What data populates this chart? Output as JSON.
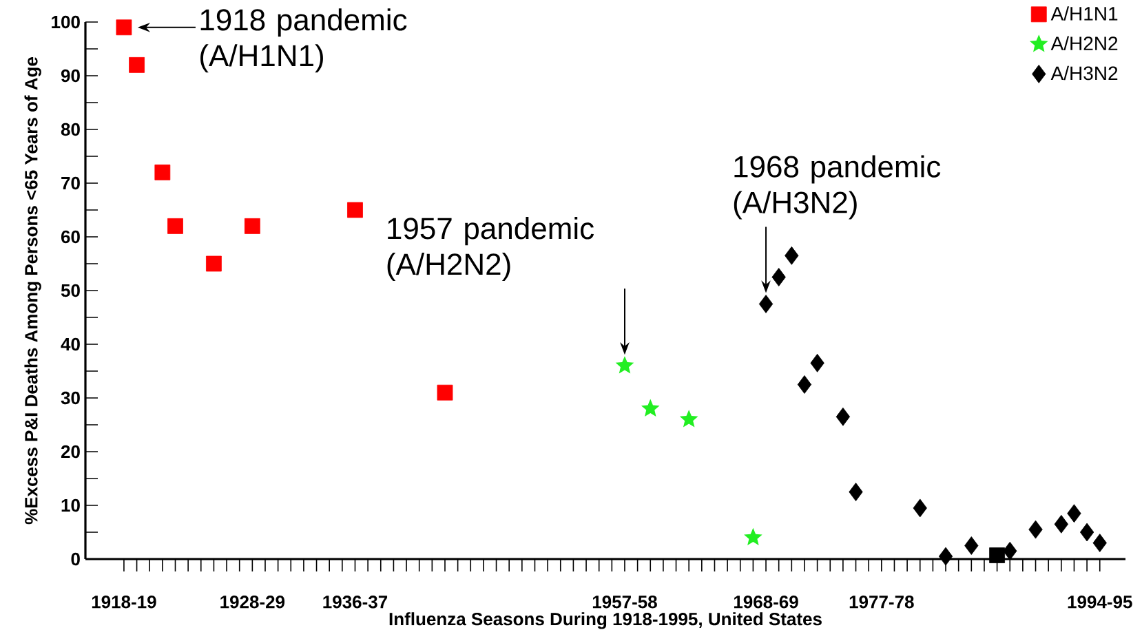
{
  "chart_data": {
    "type": "scatter",
    "xlabel": "Influenza Seasons During 1918-1995, United States",
    "ylabel": "%Excess P&I Deaths Among Persons <65 Years of Age",
    "categories": [
      "1918-19",
      null,
      null,
      null,
      null,
      null,
      null,
      null,
      null,
      null,
      "1928-29",
      null,
      null,
      null,
      null,
      null,
      null,
      null,
      "1936-37",
      null,
      null,
      null,
      null,
      null,
      null,
      null,
      null,
      null,
      null,
      null,
      null,
      null,
      null,
      null,
      null,
      null,
      null,
      null,
      null,
      "1957-58",
      null,
      null,
      null,
      null,
      null,
      null,
      null,
      null,
      null,
      null,
      "1968-69",
      null,
      null,
      null,
      null,
      null,
      null,
      null,
      null,
      "1977-78",
      null,
      null,
      null,
      null,
      null,
      null,
      null,
      null,
      null,
      null,
      null,
      null,
      null,
      null,
      null,
      null,
      "1994-95"
    ],
    "ylim": [
      0,
      100
    ],
    "yticks": [
      0,
      10,
      20,
      30,
      40,
      50,
      60,
      70,
      80,
      90,
      100
    ],
    "legend": "top right",
    "series": [
      {
        "name": "A/H1N1",
        "color": "#ff0000",
        "marker": "square",
        "values": [
          99,
          92,
          null,
          72,
          62,
          null,
          null,
          55,
          null,
          null,
          62,
          null,
          null,
          null,
          null,
          null,
          null,
          null,
          65,
          null,
          null,
          null,
          null,
          null,
          null,
          31,
          null,
          null,
          null,
          null,
          null,
          null,
          null,
          null,
          null,
          null,
          null,
          null,
          null,
          null,
          null,
          null,
          null,
          null,
          null,
          null,
          null,
          null,
          null,
          null,
          null,
          null,
          null,
          null,
          null,
          null,
          null,
          null,
          null,
          null,
          null,
          null,
          null,
          null,
          null,
          null,
          null,
          null,
          null,
          null,
          null,
          null,
          null,
          null,
          null,
          null,
          null
        ]
      },
      {
        "name": "A/H2N2",
        "color": "#22ee22",
        "marker": "star",
        "values": [
          null,
          null,
          null,
          null,
          null,
          null,
          null,
          null,
          null,
          null,
          null,
          null,
          null,
          null,
          null,
          null,
          null,
          null,
          null,
          null,
          null,
          null,
          null,
          null,
          null,
          null,
          null,
          null,
          null,
          null,
          null,
          null,
          null,
          null,
          null,
          null,
          null,
          null,
          null,
          36,
          null,
          28,
          null,
          null,
          26,
          null,
          null,
          null,
          null,
          4,
          null,
          null,
          null,
          null,
          null,
          null,
          null,
          null,
          null,
          null,
          null,
          null,
          null,
          null,
          null,
          null,
          null,
          null,
          null,
          null,
          null,
          null,
          null,
          null,
          null,
          null,
          null
        ]
      },
      {
        "name": "A/H3N2",
        "color": "#000000",
        "marker": "diamond",
        "values": [
          null,
          null,
          null,
          null,
          null,
          null,
          null,
          null,
          null,
          null,
          null,
          null,
          null,
          null,
          null,
          null,
          null,
          null,
          null,
          null,
          null,
          null,
          null,
          null,
          null,
          null,
          null,
          null,
          null,
          null,
          null,
          null,
          null,
          null,
          null,
          null,
          null,
          null,
          null,
          null,
          null,
          null,
          null,
          null,
          null,
          null,
          null,
          null,
          null,
          null,
          47.5,
          52.5,
          56.5,
          32.5,
          36.5,
          null,
          26.5,
          12.5,
          null,
          null,
          null,
          null,
          9.5,
          null,
          0.5,
          null,
          2.5,
          null,
          null,
          1.5,
          null,
          5.5,
          null,
          6.5,
          8.5,
          5,
          3
        ]
      },
      {
        "color": "#000000",
        "marker": "square",
        "values": [
          null,
          null,
          null,
          null,
          null,
          null,
          null,
          null,
          null,
          null,
          null,
          null,
          null,
          null,
          null,
          null,
          null,
          null,
          null,
          null,
          null,
          null,
          null,
          null,
          null,
          null,
          null,
          null,
          null,
          null,
          null,
          null,
          null,
          null,
          null,
          null,
          null,
          null,
          null,
          null,
          null,
          null,
          null,
          null,
          null,
          null,
          null,
          null,
          null,
          null,
          null,
          null,
          null,
          null,
          null,
          null,
          null,
          null,
          null,
          null,
          null,
          null,
          null,
          null,
          null,
          null,
          null,
          null,
          0.7,
          null,
          null,
          null,
          null,
          null,
          null,
          null,
          null
        ]
      }
    ],
    "annotations": [
      {
        "text": "1918 pandemic (A/H1N1)",
        "x": "1918-19",
        "y": 99
      },
      {
        "text": "1957 pandemic (A/H2N2)",
        "x": "1957-58",
        "y": 36
      },
      {
        "text": "1968 pandemic (A/H3N2)",
        "x": "1968-69",
        "y": 47.5
      }
    ]
  }
}
